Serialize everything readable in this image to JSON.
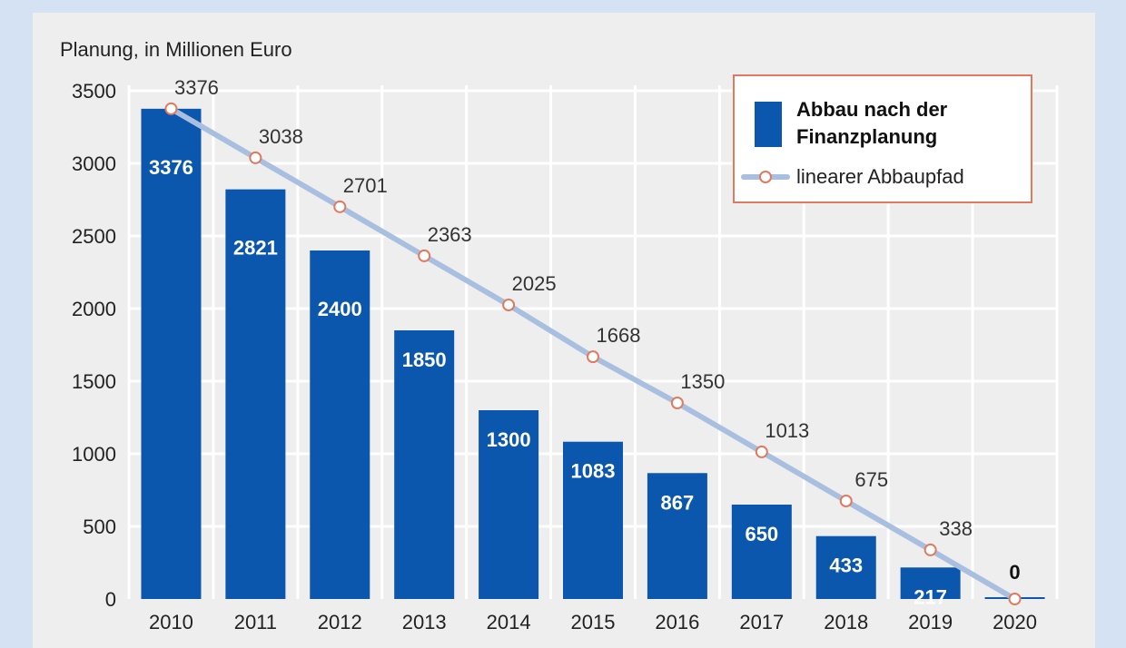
{
  "chart_data": {
    "type": "bar",
    "ylabel": "Planung, in Millionen Euro",
    "ylim": [
      0,
      3500
    ],
    "yticks": [
      0,
      500,
      1000,
      1500,
      2000,
      2500,
      3000,
      3500
    ],
    "grid": true,
    "legend_position": "top-right",
    "categories": [
      "2010",
      "2011",
      "2012",
      "2013",
      "2014",
      "2015",
      "2016",
      "2017",
      "2018",
      "2019",
      "2020"
    ],
    "series": [
      {
        "name": "Abbau nach der Finanzplanung",
        "type": "bar",
        "color": "#0b57ad",
        "values": [
          3376,
          2821,
          2400,
          1850,
          1300,
          1083,
          867,
          650,
          433,
          217,
          0
        ]
      },
      {
        "name": "linearer Abbaupfad",
        "type": "line",
        "color": "#a9bfe0",
        "marker_color": "#e07a5f",
        "values": [
          3376,
          3038,
          2701,
          2363,
          2025,
          1668,
          1350,
          1013,
          675,
          338,
          0
        ]
      }
    ]
  }
}
